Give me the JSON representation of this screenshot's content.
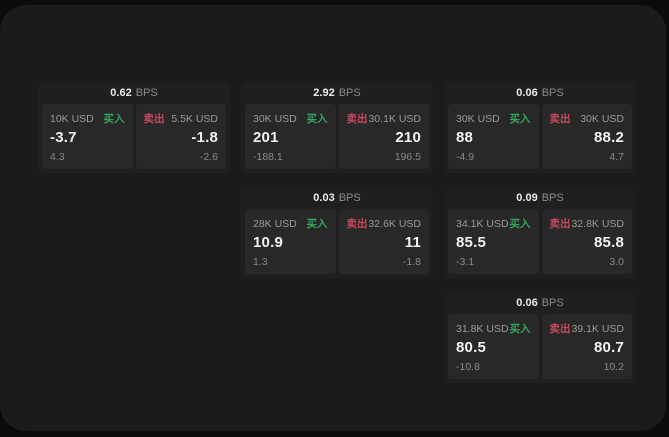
{
  "labels": {
    "buy": "买入",
    "sell": "卖出",
    "bps_suffix": "BPS"
  },
  "colors": {
    "background": "#0b0b0b",
    "surface": "#1b1b1b",
    "card": "#1f1f1f",
    "panel": "#282828",
    "buy_green": "#35a55e",
    "sell_red": "#c8495c"
  },
  "cards": [
    {
      "bps": "0.62",
      "buy": {
        "notional": "10K USD",
        "price": "-3.7",
        "delta": "4.3"
      },
      "sell": {
        "notional": "5.5K USD",
        "price": "-1.8",
        "delta": "-2.6"
      }
    },
    {
      "bps": "2.92",
      "buy": {
        "notional": "30K USD",
        "price": "201",
        "delta": "-188.1"
      },
      "sell": {
        "notional": "30.1K USD",
        "price": "210",
        "delta": "196.5"
      }
    },
    {
      "bps": "0.06",
      "buy": {
        "notional": "30K USD",
        "price": "88",
        "delta": "-4.9"
      },
      "sell": {
        "notional": "30K USD",
        "price": "88.2",
        "delta": "4.7"
      }
    },
    {
      "bps": "0.03",
      "buy": {
        "notional": "28K USD",
        "price": "10.9",
        "delta": "1.3"
      },
      "sell": {
        "notional": "32.6K USD",
        "price": "11",
        "delta": "-1.8"
      }
    },
    {
      "bps": "0.09",
      "buy": {
        "notional": "34.1K USD",
        "price": "85.5",
        "delta": "-3.1"
      },
      "sell": {
        "notional": "32.8K USD",
        "price": "85.8",
        "delta": "3.0"
      }
    },
    {
      "bps": "0.06",
      "buy": {
        "notional": "31.8K USD",
        "price": "80.5",
        "delta": "-10.8"
      },
      "sell": {
        "notional": "39.1K USD",
        "price": "80.7",
        "delta": "10.2"
      }
    }
  ]
}
